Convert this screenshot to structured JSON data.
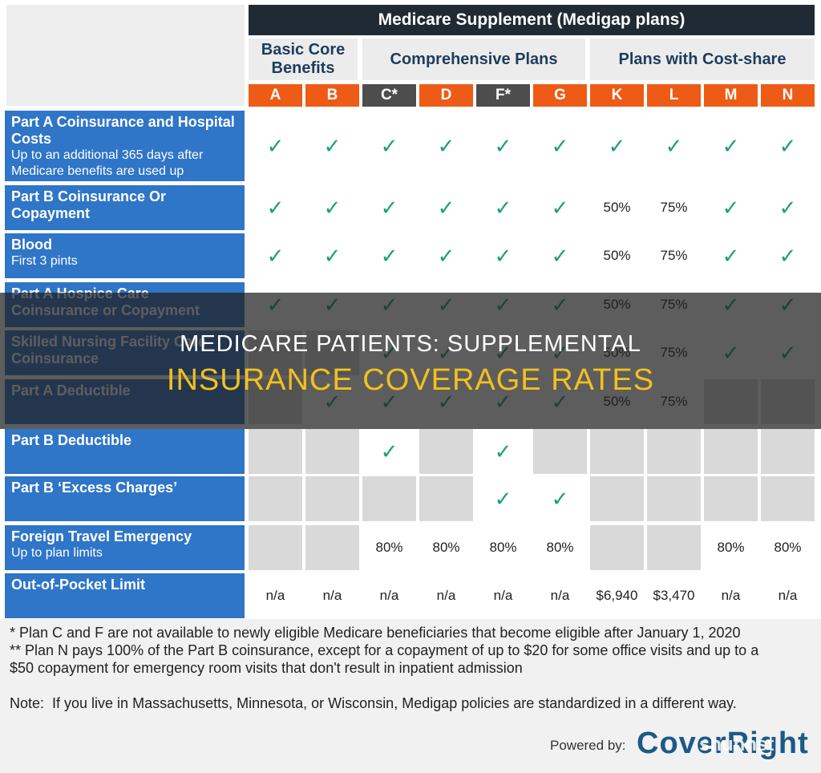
{
  "header": {
    "title": "Medicare Supplement (Medigap plans)",
    "groups": [
      "Basic Core Benefits",
      "Comprehensive Plans",
      "Plans with Cost-share"
    ],
    "plans": [
      "A",
      "B",
      "C*",
      "D",
      "F*",
      "G",
      "K",
      "L",
      "M",
      "N"
    ]
  },
  "rows": [
    {
      "title": "Part A Coinsurance and Hospital Costs",
      "subtitle": "Up to an additional 365 days after Medicare benefits are used up",
      "cells": [
        "✓",
        "✓",
        "✓",
        "✓",
        "✓",
        "✓",
        "✓",
        "✓",
        "✓",
        "✓"
      ]
    },
    {
      "title": "Part B Coinsurance Or Copayment",
      "subtitle": "",
      "cells": [
        "✓",
        "✓",
        "✓",
        "✓",
        "✓",
        "✓",
        "50%",
        "75%",
        "✓",
        "✓"
      ]
    },
    {
      "title": "Blood",
      "subtitle": "First 3 pints",
      "cells": [
        "✓",
        "✓",
        "✓",
        "✓",
        "✓",
        "✓",
        "50%",
        "75%",
        "✓",
        "✓"
      ]
    },
    {
      "title": "Part A Hospice Care Coinsurance or Copayment",
      "subtitle": "",
      "cells": [
        "✓",
        "✓",
        "✓",
        "✓",
        "✓",
        "✓",
        "50%",
        "75%",
        "✓",
        "✓"
      ]
    },
    {
      "title": "Skilled Nursing Facility Care Coinsurance",
      "subtitle": "",
      "cells": [
        "",
        "",
        "✓",
        "✓",
        "✓",
        "✓",
        "50%",
        "75%",
        "✓",
        "✓"
      ]
    },
    {
      "title": "Part A Deductible",
      "subtitle": "",
      "cells": [
        "",
        "✓",
        "✓",
        "✓",
        "✓",
        "✓",
        "50%",
        "75%",
        "",
        ""
      ]
    },
    {
      "title": "Part B Deductible",
      "subtitle": "",
      "cells": [
        "",
        "",
        "✓",
        "",
        "✓",
        "",
        "",
        "",
        "",
        ""
      ]
    },
    {
      "title": "Part B ‘Excess Charges’",
      "subtitle": "",
      "cells": [
        "",
        "",
        "",
        "",
        "✓",
        "✓",
        "",
        "",
        "",
        ""
      ]
    },
    {
      "title": "Foreign Travel Emergency",
      "subtitle": "Up to plan limits",
      "cells": [
        "",
        "",
        "80%",
        "80%",
        "80%",
        "80%",
        "",
        "",
        "80%",
        "80%"
      ]
    },
    {
      "title": "Out-of-Pocket Limit",
      "subtitle": "",
      "cells": [
        "n/a",
        "n/a",
        "n/a",
        "n/a",
        "n/a",
        "n/a",
        "$6,940",
        "$3,470",
        "n/a",
        "n/a"
      ]
    }
  ],
  "footnotes": {
    "line1": "* Plan C and F are not available to newly eligible Medicare beneficiaries that become eligible after January 1, 2020",
    "line2": "** Plan N pays 100% of the Part B coinsurance, except for a copayment of up to $20 for some office visits and up to a",
    "line3": "$50 copayment for emergency room visits that don't result in inpatient admission",
    "note": "Note:  If you live in Massachusetts, Minnesota, or Wisconsin, Medigap policies are standardized in a different way."
  },
  "overlay": {
    "line1": "MEDICARE PATIENTS: SUPPLEMENTAL",
    "line2": "INSURANCE COVERAGE RATES"
  },
  "branding": {
    "powered_by": "Powered by:",
    "brand": "CoverRight",
    "watermark": "shuhnst"
  },
  "colors": {
    "label_blue": "#2f75c8",
    "plan_orange": "#ee5b16",
    "plan_dark": "#4d4d4d",
    "check_green": "#1e9e7a",
    "overlay_yellow": "#f2c01e"
  }
}
